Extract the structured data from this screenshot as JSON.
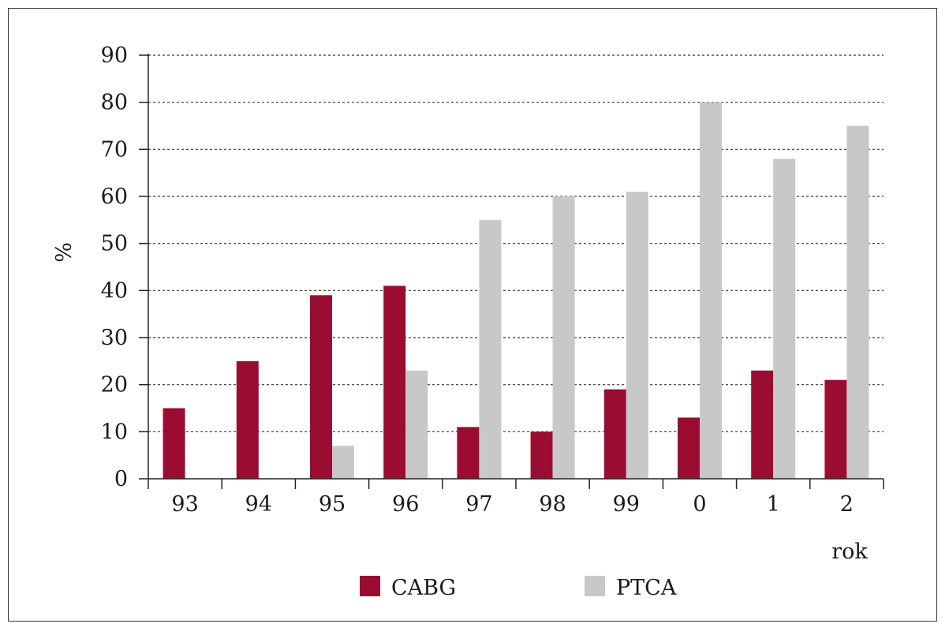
{
  "chart_data": {
    "type": "bar",
    "categories": [
      "93",
      "94",
      "95",
      "96",
      "97",
      "98",
      "99",
      "0",
      "1",
      "2"
    ],
    "series": [
      {
        "name": "CABG",
        "color": "#9b0c32",
        "values": [
          15,
          25,
          39,
          41,
          11,
          10,
          19,
          13,
          23,
          21
        ]
      },
      {
        "name": "PTCA",
        "color": "#c8c8c8",
        "values": [
          0,
          0,
          7,
          23,
          55,
          60,
          61,
          80,
          68,
          75
        ]
      }
    ],
    "title": "",
    "xlabel": "rok",
    "ylabel": "%",
    "ylim": [
      0,
      90
    ],
    "yticks": [
      0,
      10,
      20,
      30,
      40,
      50,
      60,
      70,
      80,
      90
    ],
    "grid": "dotted horizontal",
    "legend": "bottom"
  }
}
